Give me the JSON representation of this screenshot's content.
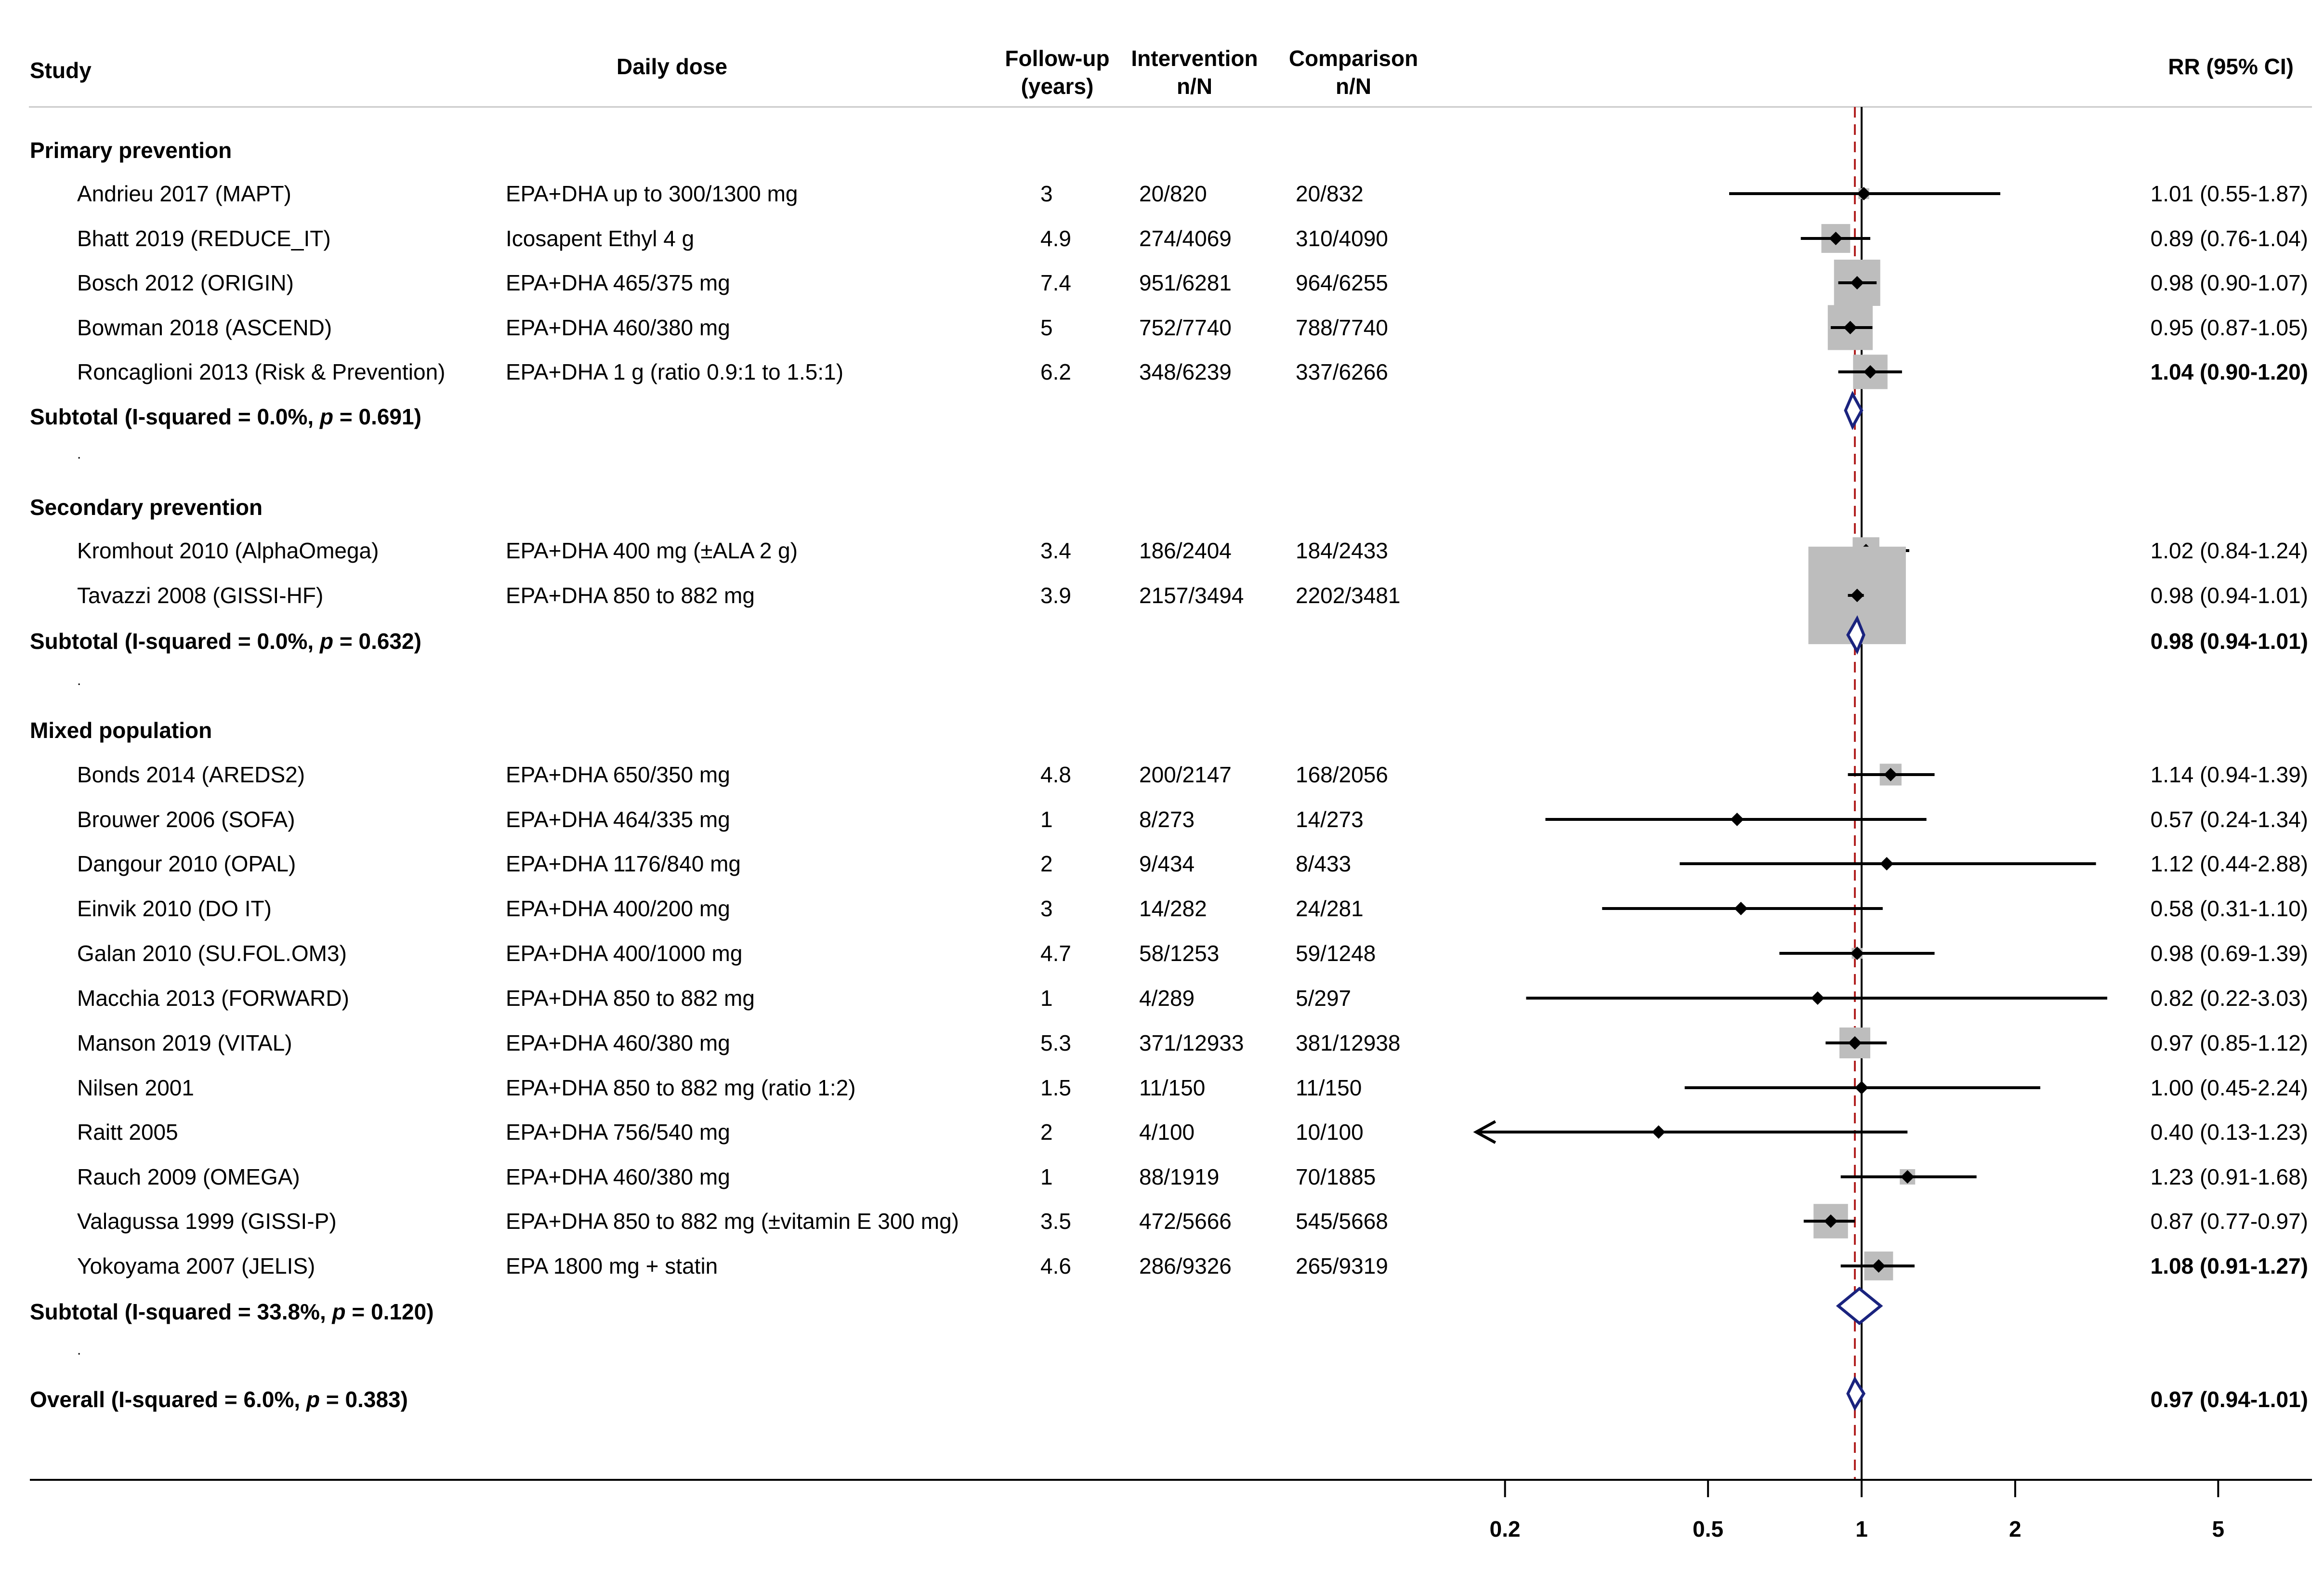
{
  "headers": {
    "study": "Study",
    "dose": "Daily dose",
    "followup_1": "Follow-up",
    "followup_2": "(years)",
    "intervention_1": "Intervention",
    "intervention_2": "n/N",
    "comparison_1": "Comparison",
    "comparison_2": "n/N",
    "rr": "RR (95% CI)"
  },
  "groups": {
    "primary": {
      "label": "Primary prevention",
      "subtotal_prefix": "Subtotal  (I-squared = 0.0%, ",
      "subtotal_p": "p",
      "subtotal_suffix": " = 0.691)",
      "subtotal_rr": ""
    },
    "secondary": {
      "label": "Secondary prevention",
      "subtotal_prefix": "Subtotal  (I-squared = 0.0%, ",
      "subtotal_p": "p",
      "subtotal_suffix": " = 0.632)",
      "subtotal_rr": "0.98 (0.94-1.01)"
    },
    "mixed": {
      "label": "Mixed population",
      "subtotal_prefix": "Subtotal  (I-squared = 33.8%, ",
      "subtotal_p": "p",
      "subtotal_suffix": " = 0.120)",
      "subtotal_rr": ""
    },
    "overall": {
      "label_prefix": "Overall  (I-squared = 6.0%, ",
      "label_p": "p",
      "label_suffix": " = 0.383)",
      "rr": "0.97 (0.94-1.01)"
    }
  },
  "studies": [
    {
      "study": "Andrieu 2017 (MAPT)",
      "dose": "EPA+DHA up to 300/1300 mg",
      "fu": "3",
      "intervention": "20/820",
      "comparison": "20/832",
      "rr": "1.01 (0.55-1.87)"
    },
    {
      "study": "Bhatt 2019 (REDUCE_IT)",
      "dose": "Icosapent Ethyl 4 g",
      "fu": "4.9",
      "intervention": "274/4069",
      "comparison": "310/4090",
      "rr": "0.89 (0.76-1.04)"
    },
    {
      "study": "Bosch 2012 (ORIGIN)",
      "dose": "EPA+DHA 465/375 mg",
      "fu": "7.4",
      "intervention": "951/6281",
      "comparison": "964/6255",
      "rr": "0.98 (0.90-1.07)"
    },
    {
      "study": "Bowman 2018 (ASCEND)",
      "dose": "EPA+DHA 460/380 mg",
      "fu": "5",
      "intervention": "752/7740",
      "comparison": "788/7740",
      "rr": "0.95 (0.87-1.05)"
    },
    {
      "study": "Roncaglioni 2013 (Risk & Prevention)",
      "dose": "EPA+DHA 1 g (ratio 0.9:1 to 1.5:1)",
      "fu": "6.2",
      "intervention": "348/6239",
      "comparison": "337/6266",
      "rr": "1.04 (0.90-1.20)"
    },
    {
      "study": "Kromhout 2010 (AlphaOmega)",
      "dose": "EPA+DHA 400 mg (±ALA 2 g)",
      "fu": "3.4",
      "intervention": "186/2404",
      "comparison": "184/2433",
      "rr": "1.02 (0.84-1.24)"
    },
    {
      "study": "Tavazzi 2008 (GISSI-HF)",
      "dose": "EPA+DHA 850 to 882 mg",
      "fu": "3.9",
      "intervention": "2157/3494",
      "comparison": "2202/3481",
      "rr": "0.98 (0.94-1.01)"
    },
    {
      "study": "Bonds 2014 (AREDS2)",
      "dose": "EPA+DHA 650/350 mg",
      "fu": "4.8",
      "intervention": "200/2147",
      "comparison": "168/2056",
      "rr": "1.14 (0.94-1.39)"
    },
    {
      "study": "Brouwer 2006 (SOFA)",
      "dose": "EPA+DHA 464/335 mg",
      "fu": "1",
      "intervention": "8/273",
      "comparison": "14/273",
      "rr": "0.57 (0.24-1.34)"
    },
    {
      "study": "Dangour 2010 (OPAL)",
      "dose": "EPA+DHA 1176/840 mg",
      "fu": "2",
      "intervention": "9/434",
      "comparison": "8/433",
      "rr": "1.12 (0.44-2.88)"
    },
    {
      "study": "Einvik 2010 (DO IT)",
      "dose": "EPA+DHA 400/200 mg",
      "fu": "3",
      "intervention": "14/282",
      "comparison": "24/281",
      "rr": "0.58 (0.31-1.10)"
    },
    {
      "study": "Galan 2010 (SU.FOL.OM3)",
      "dose": "EPA+DHA 400/1000 mg",
      "fu": "4.7",
      "intervention": "58/1253",
      "comparison": "59/1248",
      "rr": "0.98 (0.69-1.39)"
    },
    {
      "study": "Macchia 2013 (FORWARD)",
      "dose": "EPA+DHA 850 to 882 mg",
      "fu": "1",
      "intervention": "4/289",
      "comparison": "5/297",
      "rr": "0.82 (0.22-3.03)"
    },
    {
      "study": "Manson 2019 (VITAL)",
      "dose": "EPA+DHA 460/380 mg",
      "fu": "5.3",
      "intervention": "371/12933",
      "comparison": "381/12938",
      "rr": "0.97 (0.85-1.12)"
    },
    {
      "study": "Nilsen 2001",
      "dose": "EPA+DHA 850 to 882 mg (ratio 1:2)",
      "fu": "1.5",
      "intervention": "11/150",
      "comparison": "11/150",
      "rr": "1.00 (0.45-2.24)"
    },
    {
      "study": "Raitt 2005",
      "dose": "EPA+DHA 756/540 mg",
      "fu": "2",
      "intervention": "4/100",
      "comparison": "10/100",
      "rr": "0.40 (0.13-1.23)"
    },
    {
      "study": "Rauch 2009 (OMEGA)",
      "dose": "EPA+DHA 460/380 mg",
      "fu": "1",
      "intervention": "88/1919",
      "comparison": "70/1885",
      "rr": "1.23 (0.91-1.68)"
    },
    {
      "study": "Valagussa 1999 (GISSI-P)",
      "dose": "EPA+DHA 850 to 882 mg (±vitamin E 300 mg)",
      "fu": "3.5",
      "intervention": "472/5666",
      "comparison": "545/5668",
      "rr": "0.87 (0.77-0.97)"
    },
    {
      "study": "Yokoyama 2007 (JELIS)",
      "dose": "EPA 1800 mg + statin",
      "fu": "4.6",
      "intervention": "286/9326",
      "comparison": "265/9319",
      "rr": "1.08 (0.91-1.27)"
    }
  ],
  "colors": {
    "diamond": "#1a237e",
    "box": "#bdbdbd",
    "pooled_line": "#b22222",
    "text": "#000000"
  },
  "chart_data": {
    "type": "forest",
    "scale": "log",
    "xlim": [
      0.2,
      5
    ],
    "xticks": [
      0.2,
      0.5,
      1,
      2,
      5
    ],
    "xtick_labels": [
      "0.2",
      "0.5",
      "1",
      "2",
      "5"
    ],
    "reference_line": 1,
    "pooled_line": 0.97,
    "studies": [
      {
        "name": "Andrieu 2017 (MAPT)",
        "group": "Primary prevention",
        "rr": 1.01,
        "lo": 0.55,
        "hi": 1.87,
        "weight": 0.5
      },
      {
        "name": "Bhatt 2019 (REDUCE_IT)",
        "group": "Primary prevention",
        "rr": 0.89,
        "lo": 0.76,
        "hi": 1.04,
        "weight": 3.5
      },
      {
        "name": "Bosch 2012 (ORIGIN)",
        "group": "Primary prevention",
        "rr": 0.98,
        "lo": 0.9,
        "hi": 1.07,
        "weight": 9.0
      },
      {
        "name": "Bowman 2018 (ASCEND)",
        "group": "Primary prevention",
        "rr": 0.95,
        "lo": 0.87,
        "hi": 1.05,
        "weight": 8.5
      },
      {
        "name": "Roncaglioni 2013 (Risk & Prevention)",
        "group": "Primary prevention",
        "rr": 1.04,
        "lo": 0.9,
        "hi": 1.2,
        "weight": 5.0
      },
      {
        "name": "Kromhout 2010 (AlphaOmega)",
        "group": "Secondary prevention",
        "rr": 1.02,
        "lo": 0.84,
        "hi": 1.24,
        "weight": 3.0
      },
      {
        "name": "Tavazzi 2008 (GISSI-HF)",
        "group": "Secondary prevention",
        "rr": 0.98,
        "lo": 0.94,
        "hi": 1.01,
        "weight": 40.0
      },
      {
        "name": "Bonds 2014 (AREDS2)",
        "group": "Mixed population",
        "rr": 1.14,
        "lo": 0.94,
        "hi": 1.39,
        "weight": 2.0
      },
      {
        "name": "Brouwer 2006 (SOFA)",
        "group": "Mixed population",
        "rr": 0.57,
        "lo": 0.24,
        "hi": 1.34,
        "weight": 0.1
      },
      {
        "name": "Dangour 2010 (OPAL)",
        "group": "Mixed population",
        "rr": 1.12,
        "lo": 0.44,
        "hi": 2.88,
        "weight": 0.1
      },
      {
        "name": "Einvik 2010 (DO IT)",
        "group": "Mixed population",
        "rr": 0.58,
        "lo": 0.31,
        "hi": 1.1,
        "weight": 0.2
      },
      {
        "name": "Galan 2010 (SU.FOL.OM3)",
        "group": "Mixed population",
        "rr": 0.98,
        "lo": 0.69,
        "hi": 1.39,
        "weight": 0.5
      },
      {
        "name": "Macchia 2013 (FORWARD)",
        "group": "Mixed population",
        "rr": 0.82,
        "lo": 0.22,
        "hi": 3.03,
        "weight": 0.05
      },
      {
        "name": "Manson 2019 (VITAL)",
        "group": "Mixed population",
        "rr": 0.97,
        "lo": 0.85,
        "hi": 1.12,
        "weight": 4.0
      },
      {
        "name": "Nilsen 2001",
        "group": "Mixed population",
        "rr": 1.0,
        "lo": 0.45,
        "hi": 2.24,
        "weight": 0.1
      },
      {
        "name": "Raitt 2005",
        "group": "Mixed population",
        "rr": 0.4,
        "lo": 0.13,
        "hi": 1.23,
        "weight": 0.05
      },
      {
        "name": "Rauch 2009 (OMEGA)",
        "group": "Mixed population",
        "rr": 1.23,
        "lo": 0.91,
        "hi": 1.68,
        "weight": 1.0
      },
      {
        "name": "Valagussa 1999 (GISSI-P)",
        "group": "Mixed population",
        "rr": 0.87,
        "lo": 0.77,
        "hi": 0.97,
        "weight": 5.0
      },
      {
        "name": "Yokoyama 2007 (JELIS)",
        "group": "Mixed population",
        "rr": 1.08,
        "lo": 0.91,
        "hi": 1.27,
        "weight": 3.5
      }
    ],
    "pooled": [
      {
        "name": "Subtotal Primary prevention",
        "rr": 0.96,
        "lo": 0.93,
        "hi": 1.0
      },
      {
        "name": "Subtotal Secondary prevention",
        "rr": 0.98,
        "lo": 0.94,
        "hi": 1.01
      },
      {
        "name": "Subtotal Mixed population",
        "rr": 0.99,
        "lo": 0.9,
        "hi": 1.09
      },
      {
        "name": "Overall",
        "rr": 0.97,
        "lo": 0.94,
        "hi": 1.01
      }
    ]
  }
}
